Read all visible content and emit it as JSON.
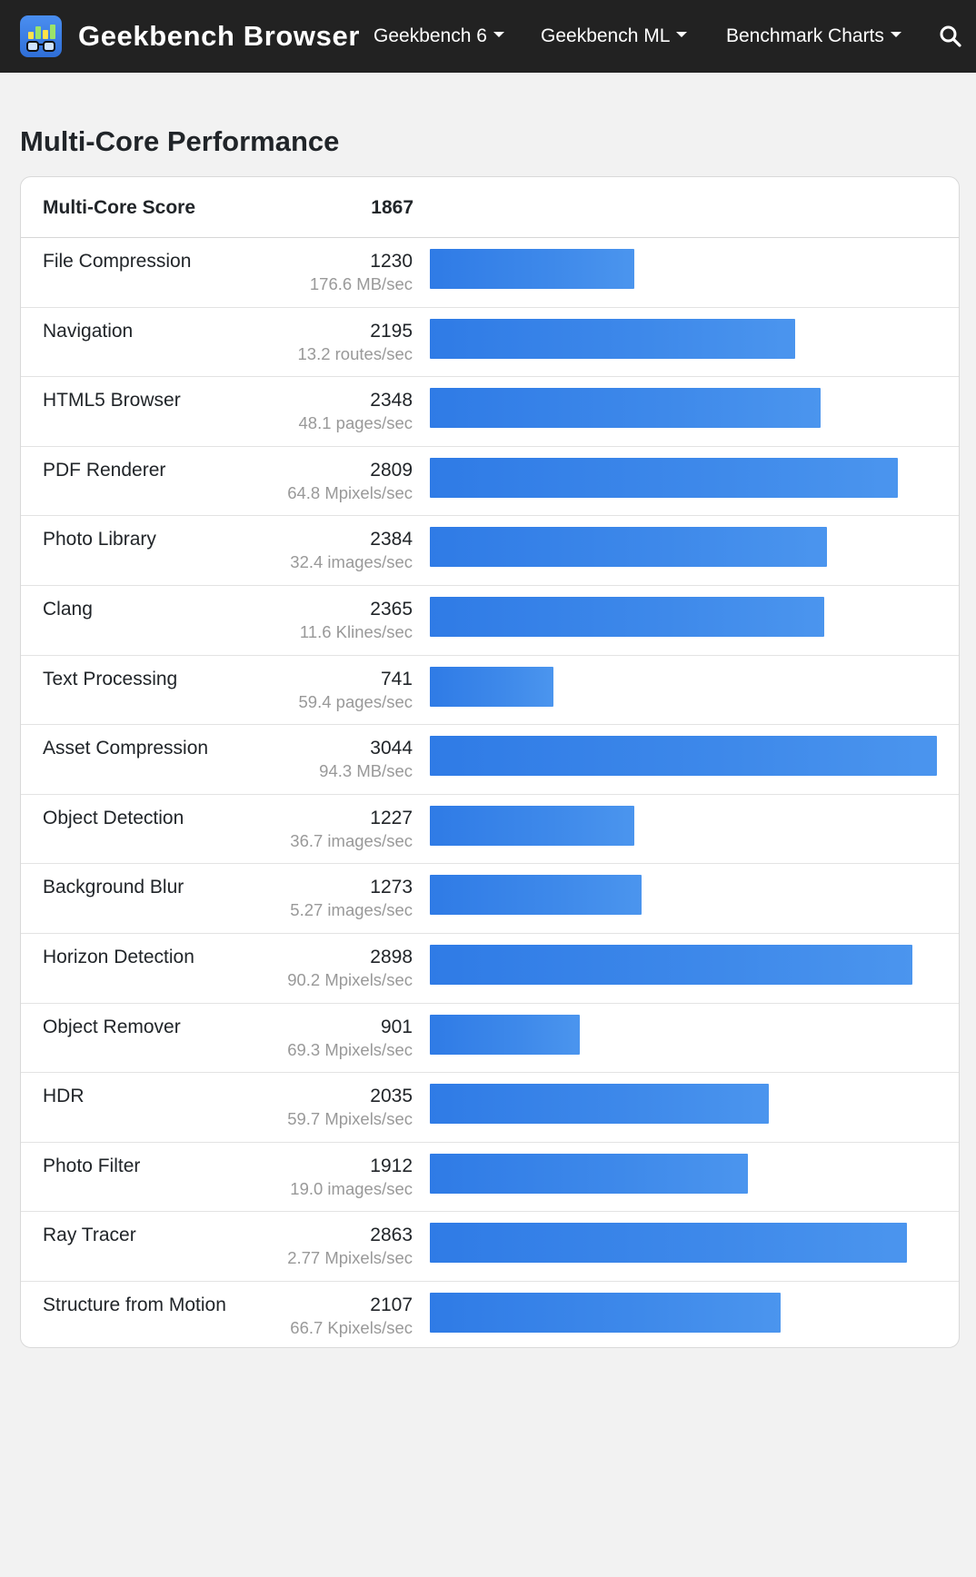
{
  "navbar": {
    "brand": "Geekbench Browser",
    "items": [
      {
        "label": "Geekbench 6"
      },
      {
        "label": "Geekbench ML"
      },
      {
        "label": "Benchmark Charts"
      }
    ],
    "search_icon": "search-icon",
    "logo_icon": "geekbench-logo-icon"
  },
  "page": {
    "title": "Multi-Core Performance"
  },
  "score": {
    "label": "Multi-Core Score",
    "value": "1867"
  },
  "colors": {
    "navbar_bg": "#222222",
    "bar_blue": "#3784e8",
    "page_bg": "#f2f2f2"
  },
  "chart_data": {
    "type": "bar",
    "max_value": 3044,
    "rows": [
      {
        "name": "File Compression",
        "score": 1230,
        "rate": "176.6 MB/sec"
      },
      {
        "name": "Navigation",
        "score": 2195,
        "rate": "13.2 routes/sec"
      },
      {
        "name": "HTML5 Browser",
        "score": 2348,
        "rate": "48.1 pages/sec"
      },
      {
        "name": "PDF Renderer",
        "score": 2809,
        "rate": "64.8 Mpixels/sec"
      },
      {
        "name": "Photo Library",
        "score": 2384,
        "rate": "32.4 images/sec"
      },
      {
        "name": "Clang",
        "score": 2365,
        "rate": "11.6 Klines/sec"
      },
      {
        "name": "Text Processing",
        "score": 741,
        "rate": "59.4 pages/sec"
      },
      {
        "name": "Asset Compression",
        "score": 3044,
        "rate": "94.3 MB/sec"
      },
      {
        "name": "Object Detection",
        "score": 1227,
        "rate": "36.7 images/sec"
      },
      {
        "name": "Background Blur",
        "score": 1273,
        "rate": "5.27 images/sec"
      },
      {
        "name": "Horizon Detection",
        "score": 2898,
        "rate": "90.2 Mpixels/sec"
      },
      {
        "name": "Object Remover",
        "score": 901,
        "rate": "69.3 Mpixels/sec"
      },
      {
        "name": "HDR",
        "score": 2035,
        "rate": "59.7 Mpixels/sec"
      },
      {
        "name": "Photo Filter",
        "score": 1912,
        "rate": "19.0 images/sec"
      },
      {
        "name": "Ray Tracer",
        "score": 2863,
        "rate": "2.77 Mpixels/sec"
      },
      {
        "name": "Structure from Motion",
        "score": 2107,
        "rate": "66.7 Kpixels/sec"
      }
    ]
  }
}
